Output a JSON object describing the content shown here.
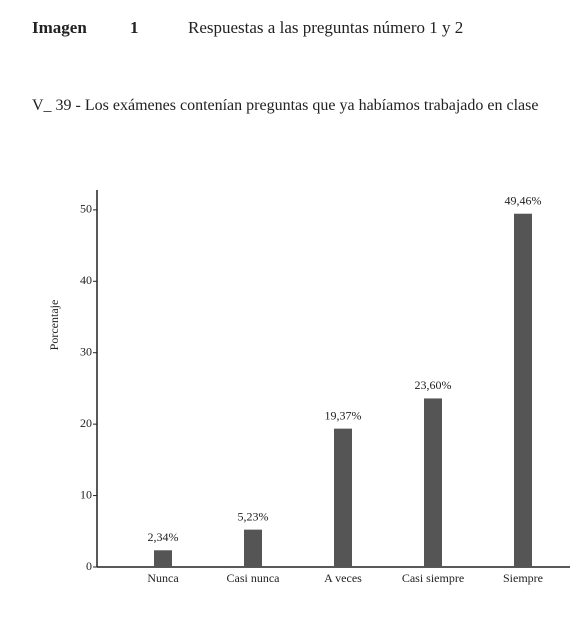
{
  "chart_data": {
    "type": "bar",
    "figure_label": "Imagen",
    "figure_number": "1",
    "title": "Respuestas a las preguntas número 1 y 2",
    "subtitle": "V_ 39 - Los exámenes contenían preguntas que ya habíamos trabajado en clase",
    "ylabel": "Porcentaje",
    "categories": [
      "Nunca",
      "Casi nunca",
      "A veces",
      "Casi siempre",
      "Siempre"
    ],
    "values": [
      2.34,
      5.23,
      19.37,
      23.6,
      49.46
    ],
    "value_labels": [
      "2,34%",
      "5,23%",
      "19,37%",
      "23,60%",
      "49,46%"
    ],
    "color": "#555555",
    "ylim": [
      0,
      52.5
    ],
    "yticks": [
      0,
      10,
      20,
      30,
      40,
      50
    ],
    "grid": false
  }
}
